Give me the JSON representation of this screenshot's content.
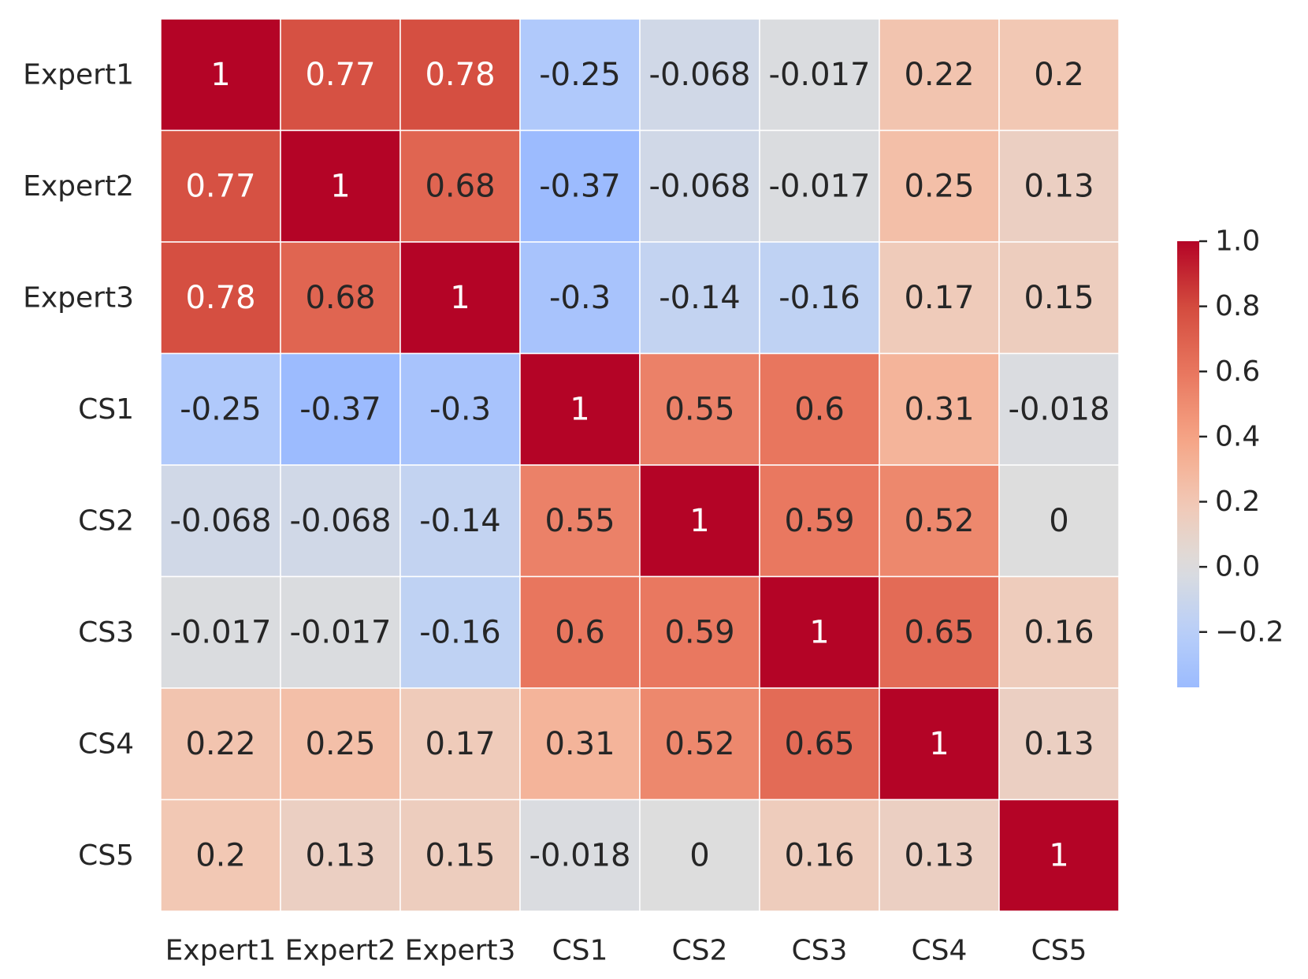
{
  "chart_data": {
    "type": "heatmap",
    "title": "",
    "xlabel": "",
    "ylabel": "",
    "x_labels": [
      "Expert1",
      "Expert2",
      "Expert3",
      "CS1",
      "CS2",
      "CS3",
      "CS4",
      "CS5"
    ],
    "y_labels": [
      "Expert1",
      "Expert2",
      "Expert3",
      "CS1",
      "CS2",
      "CS3",
      "CS4",
      "CS5"
    ],
    "values": [
      [
        1,
        0.77,
        0.78,
        -0.25,
        -0.068,
        -0.017,
        0.22,
        0.2
      ],
      [
        0.77,
        1,
        0.68,
        -0.37,
        -0.068,
        -0.017,
        0.25,
        0.13
      ],
      [
        0.78,
        0.68,
        1,
        -0.3,
        -0.14,
        -0.16,
        0.17,
        0.15
      ],
      [
        -0.25,
        -0.37,
        -0.3,
        1,
        0.55,
        0.6,
        0.31,
        -0.018
      ],
      [
        -0.068,
        -0.068,
        -0.14,
        0.55,
        1,
        0.59,
        0.52,
        0
      ],
      [
        -0.017,
        -0.017,
        -0.16,
        0.6,
        0.59,
        1,
        0.65,
        0.16
      ],
      [
        0.22,
        0.25,
        0.17,
        0.31,
        0.52,
        0.65,
        1,
        0.13
      ],
      [
        0.2,
        0.13,
        0.15,
        -0.018,
        0,
        0.16,
        0.13,
        1
      ]
    ],
    "annotations": [
      [
        "1",
        "0.77",
        "0.78",
        "-0.25",
        "-0.068",
        "-0.017",
        "0.22",
        "0.2"
      ],
      [
        "0.77",
        "1",
        "0.68",
        "-0.37",
        "-0.068",
        "-0.017",
        "0.25",
        "0.13"
      ],
      [
        "0.78",
        "0.68",
        "1",
        "-0.3",
        "-0.14",
        "-0.16",
        "0.17",
        "0.15"
      ],
      [
        "-0.25",
        "-0.37",
        "-0.3",
        "1",
        "0.55",
        "0.6",
        "0.31",
        "-0.018"
      ],
      [
        "-0.068",
        "-0.068",
        "-0.14",
        "0.55",
        "1",
        "0.59",
        "0.52",
        "0"
      ],
      [
        "-0.017",
        "-0.017",
        "-0.16",
        "0.6",
        "0.59",
        "1",
        "0.65",
        "0.16"
      ],
      [
        "0.22",
        "0.25",
        "0.17",
        "0.31",
        "0.52",
        "0.65",
        "1",
        "0.13"
      ],
      [
        "0.2",
        "0.13",
        "0.15",
        "-0.018",
        "0",
        "0.16",
        "0.13",
        "1"
      ]
    ],
    "colormap": "coolwarm",
    "center": 0,
    "vmin": -0.37,
    "vmax": 1.0,
    "grid": true,
    "gridline_color": "#ffffff",
    "colorbar": {
      "placement": "right",
      "ticks": [
        1.0,
        0.8,
        0.6,
        0.4,
        0.2,
        0.0,
        -0.2
      ],
      "tick_labels": [
        "1.0",
        "0.8",
        "0.6",
        "0.4",
        "0.2",
        "0.0",
        "−0.2"
      ]
    }
  }
}
